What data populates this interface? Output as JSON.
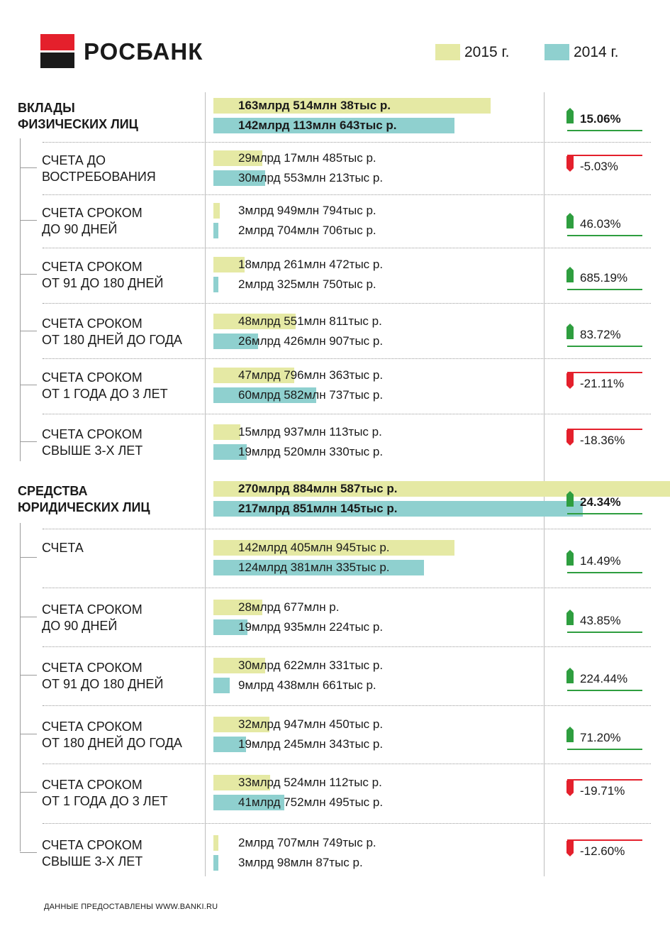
{
  "brand": {
    "name": "РОСБАНК"
  },
  "legend": [
    {
      "label": "2015 г.",
      "color": "#e5e9a4"
    },
    {
      "label": "2014 г.",
      "color": "#8fd0cf"
    }
  ],
  "colors": {
    "y2015": "#e5e9a4",
    "y2014": "#8fd0cf",
    "up": "#2e9e3f",
    "down": "#e4202c"
  },
  "chart_data": {
    "type": "bar",
    "orientation": "horizontal",
    "series_names": [
      "2015 г.",
      "2014 г."
    ],
    "rows": [
      {
        "label": "ВКЛАДЫ ФИЗИЧЕСКИХ ЛИЦ",
        "main": true,
        "v2015": "163млрд 514млн 38тыс р.",
        "v2014": "142млрд 113млн 643тыс р.",
        "n2015": 163.514,
        "n2014": 142.114,
        "change": "15.06%",
        "dir": "up"
      },
      {
        "label": "СЧЕТА ДО ВОСТРЕБОВАНИЯ",
        "main": false,
        "v2015": "29млрд 17млн 485тыс р.",
        "v2014": "30млрд 553млн 213тыс р.",
        "n2015": 29.017,
        "n2014": 30.553,
        "change": "-5.03%",
        "dir": "down"
      },
      {
        "label": "СЧЕТА СРОКОМ ДО 90 ДНЕЙ",
        "main": false,
        "v2015": "3млрд 949млн 794тыс р.",
        "v2014": "2млрд 704млн 706тыс р.",
        "n2015": 3.95,
        "n2014": 2.705,
        "change": "46.03%",
        "dir": "up"
      },
      {
        "label": "СЧЕТА СРОКОМ ОТ 91 ДО 180 ДНЕЙ",
        "main": false,
        "v2015": "18млрд 261млн 472тыс р.",
        "v2014": "2млрд 325млн 750тыс р.",
        "n2015": 18.261,
        "n2014": 2.326,
        "change": "685.19%",
        "dir": "up"
      },
      {
        "label": "СЧЕТА СРОКОМ ОТ 180 ДНЕЙ ДО ГОДА",
        "main": false,
        "v2015": "48млрд 551млн 811тыс р.",
        "v2014": "26млрд 426млн 907тыс р.",
        "n2015": 48.552,
        "n2014": 26.427,
        "change": "83.72%",
        "dir": "up"
      },
      {
        "label": "СЧЕТА СРОКОМ ОТ 1 ГОДА ДО 3 ЛЕТ",
        "main": false,
        "v2015": "47млрд 796млн 363тыс р.",
        "v2014": "60млрд 582млн 737тыс р.",
        "n2015": 47.796,
        "n2014": 60.583,
        "change": "-21.11%",
        "dir": "down"
      },
      {
        "label": "СЧЕТА СРОКОМ СВЫШЕ 3-Х ЛЕТ",
        "main": false,
        "v2015": "15млрд 937млн 113тыс р.",
        "v2014": "19млрд 520млн 330тыс р.",
        "n2015": 15.937,
        "n2014": 19.52,
        "change": "-18.36%",
        "dir": "down"
      },
      {
        "label": "СРЕДСТВА ЮРИДИЧЕСКИХ ЛИЦ",
        "main": true,
        "v2015": "270млрд 884млн 587тыс р.",
        "v2014": "217млрд 851млн 145тыс р.",
        "n2015": 270.885,
        "n2014": 217.851,
        "change": "24.34%",
        "dir": "up"
      },
      {
        "label": "СЧЕТА",
        "main": false,
        "v2015": "142млрд 405млн 945тыс р.",
        "v2014": "124млрд 381млн 335тыс р.",
        "n2015": 142.406,
        "n2014": 124.381,
        "change": "14.49%",
        "dir": "up"
      },
      {
        "label": "СЧЕТА СРОКОМ ДО 90 ДНЕЙ",
        "main": false,
        "v2015": "28млрд 677млн р.",
        "v2014": "19млрд 935млн 224тыс р.",
        "n2015": 28.677,
        "n2014": 19.935,
        "change": "43.85%",
        "dir": "up"
      },
      {
        "label": "СЧЕТА СРОКОМ ОТ 91 ДО 180 ДНЕЙ",
        "main": false,
        "v2015": "30млрд 622млн 331тыс р.",
        "v2014": "9млрд 438млн 661тыс р.",
        "n2015": 30.622,
        "n2014": 9.439,
        "change": "224.44%",
        "dir": "up"
      },
      {
        "label": "СЧЕТА СРОКОМ ОТ 180 ДНЕЙ ДО ГОДА",
        "main": false,
        "v2015": "32млрд 947млн 450тыс р.",
        "v2014": "19млрд 245млн 343тыс р.",
        "n2015": 32.947,
        "n2014": 19.245,
        "change": "71.20%",
        "dir": "up"
      },
      {
        "label": "СЧЕТА СРОКОМ ОТ 1 ГОДА ДО 3 ЛЕТ",
        "main": false,
        "v2015": "33млрд 524млн 112тыс р.",
        "v2014": "41млрд 752млн 495тыс р.",
        "n2015": 33.524,
        "n2014": 41.752,
        "change": "-19.71%",
        "dir": "down"
      },
      {
        "label": "СЧЕТА СРОКОМ СВЫШЕ 3-Х ЛЕТ",
        "main": false,
        "v2015": "2млрд 707млн 749тыс р.",
        "v2014": "3млрд 98млн 87тыс р.",
        "n2015": 2.708,
        "n2014": 3.098,
        "change": "-12.60%",
        "dir": "down"
      }
    ]
  },
  "footer": {
    "text": "ДАННЫЕ ПРЕДОСТАВЛЕНЫ WWW.BANKI.RU"
  }
}
